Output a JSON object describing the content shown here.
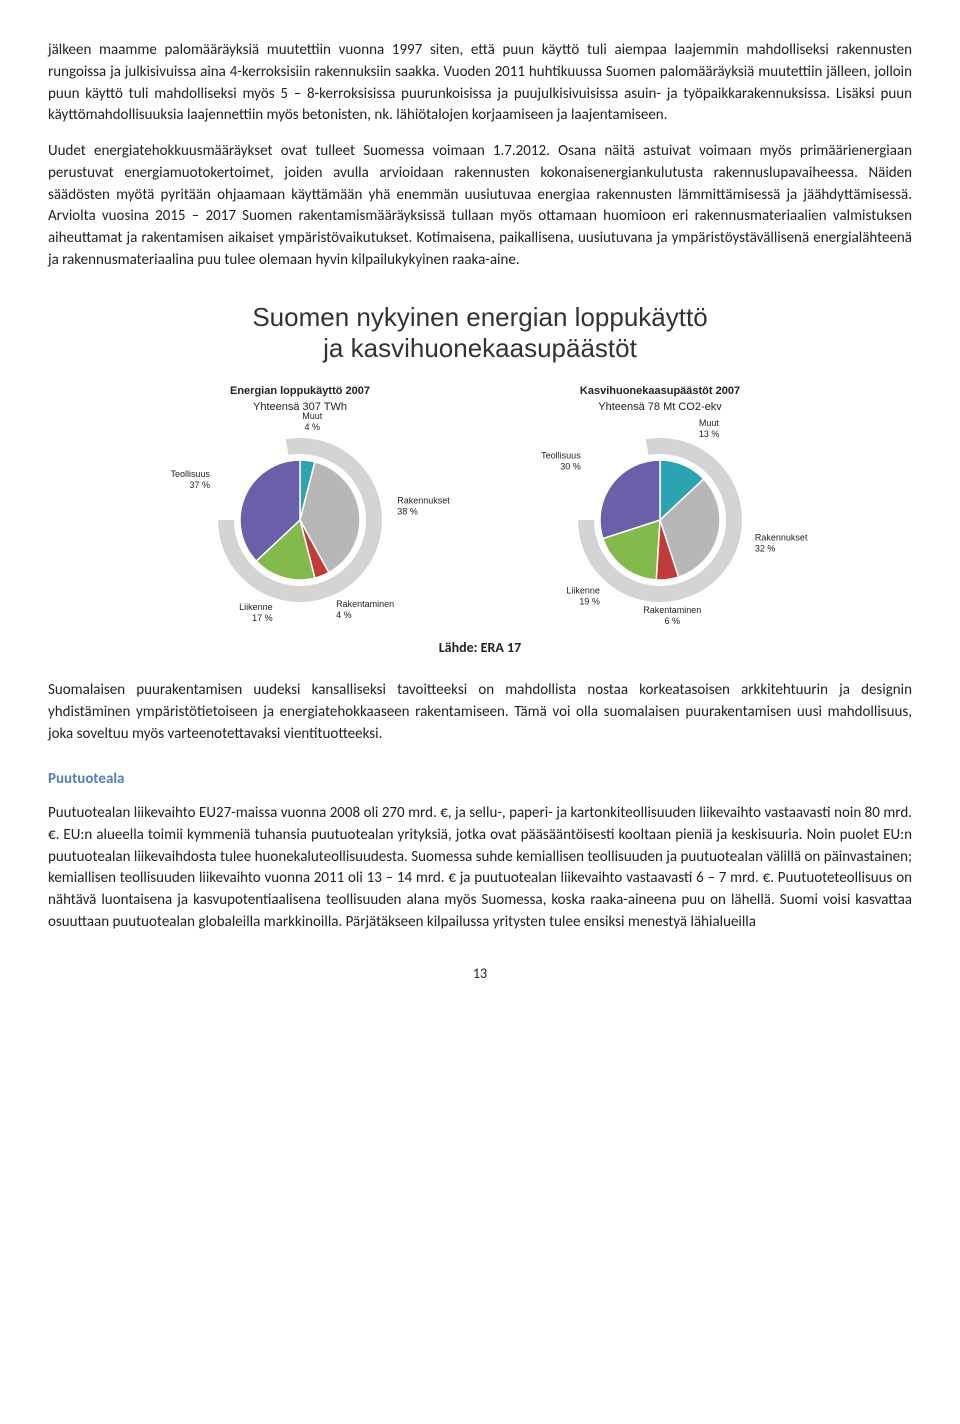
{
  "paragraphs": {
    "p1": "jälkeen maamme palomääräyksiä muutettiin vuonna 1997 siten, että puun käyttö tuli aiempaa laajemmin mahdolliseksi rakennusten rungoissa ja julkisivuissa aina 4-kerroksisiin rakennuksiin saakka. Vuoden 2011 huhtikuussa Suomen palomääräyksiä muutettiin jälleen, jolloin puun käyttö tuli mahdolliseksi myös 5 – 8-kerroksisissa puurunkoisissa ja puujulkisivuisissa asuin- ja työpaikkarakennuksissa. Lisäksi puun käyttömahdollisuuksia laajennettiin myös betonisten, nk. lähiötalojen korjaamiseen ja laajentamiseen.",
    "p2": "Uudet energiatehokkuusmääräykset ovat tulleet Suomessa voimaan 1.7.2012. Osana näitä astuivat voimaan myös primäärienergiaan perustuvat energiamuotokertoimet, joiden avulla arvioidaan rakennusten kokonaisenergiankulutusta rakennuslupavaiheessa. Näiden säädösten myötä pyritään ohjaamaan käyttämään yhä enemmän uusiutuvaa energiaa rakennusten lämmittämisessä ja jäähdyttämisessä. Arviolta vuosina 2015 – 2017 Suomen rakentamismääräyksissä tullaan myös ottamaan huomioon eri rakennusmateriaalien valmistuksen aiheuttamat ja rakentamisen aikaiset ympäristövaikutukset. Kotimaisena, paikallisena, uusiutuvana ja ympäristöystävällisenä energialähteenä ja rakennusmateriaalina puu tulee olemaan hyvin kilpailukykyinen raaka-aine.",
    "p3": "Suomalaisen puurakentamisen uudeksi kansalliseksi tavoitteeksi on mahdollista nostaa korkeatasoisen arkkitehtuurin ja designin yhdistäminen ympäristötietoiseen ja energiatehokkaaseen rakentamiseen. Tämä voi olla suomalaisen puurakentamisen uusi mahdollisuus, joka soveltuu myös varteenotettavaksi vientituotteeksi.",
    "p4": "Puutuotealan liikevaihto EU27-maissa vuonna 2008 oli 270 mrd. €, ja sellu-, paperi- ja kartonkiteollisuuden liikevaihto vastaavasti noin 80 mrd. €. EU:n alueella toimii kymmeniä tuhansia puutuotealan yrityksiä, jotka ovat pääsääntöisesti kooltaan pieniä ja keskisuuria. Noin puolet EU:n puutuotealan liikevaihdosta tulee huonekaluteollisuudesta. Suomessa suhde kemiallisen teollisuuden ja puutuotealan välillä on päinvastainen; kemiallisen teollisuuden liikevaihto vuonna 2011 oli 13 – 14 mrd. € ja puutuotealan liikevaihto vastaavasti 6 – 7 mrd. €. Puutuoteteollisuus on nähtävä luontaisena ja kasvupotentiaalisena teollisuuden alana myös Suomessa, koska raaka-aineena puu on lähellä. Suomi voisi kasvattaa osuuttaan puutuotealan globaleilla markkinoilla. Pärjätäkseen kilpailussa yritysten tulee ensiksi menestyä lähialueilla"
  },
  "chart": {
    "main_title_l1": "Suomen nykyinen energian loppukäyttö",
    "main_title_l2": "ja kasvihuonekaasupäästöt",
    "left": {
      "title": "Energian loppukäyttö 2007",
      "subtitle": "Yhteensä 307 TWh",
      "slices": [
        {
          "label": "Muut",
          "value": 4,
          "color": "#2ca3b0"
        },
        {
          "label": "Rakennukset",
          "value": 38,
          "color": "#b7b7b7"
        },
        {
          "label": "Rakentaminen",
          "value": 4,
          "color": "#c23a3a"
        },
        {
          "label": "Liikenne",
          "value": 17,
          "color": "#84b94b"
        },
        {
          "label": "Teollisuus",
          "value": 37,
          "color": "#6a5fa9"
        }
      ],
      "ring_color": "#d4d4d4"
    },
    "right": {
      "title": "Kasvihuonekaasupäästöt 2007",
      "subtitle": "Yhteensä 78 Mt CO2-ekv",
      "slices": [
        {
          "label": "Muut",
          "value": 13,
          "color": "#2ca3b0"
        },
        {
          "label": "Rakennukset",
          "value": 32,
          "color": "#b7b7b7"
        },
        {
          "label": "Rakentaminen",
          "value": 6,
          "color": "#c23a3a"
        },
        {
          "label": "Liikenne",
          "value": 19,
          "color": "#84b94b"
        },
        {
          "label": "Teollisuus",
          "value": 30,
          "color": "#6a5fa9"
        }
      ],
      "ring_color": "#d4d4d4"
    }
  },
  "source": "Lähde: ERA 17",
  "section_title": "Puutuoteala",
  "page_number": "13",
  "colors": {
    "link_blue": "#4f81bd"
  }
}
